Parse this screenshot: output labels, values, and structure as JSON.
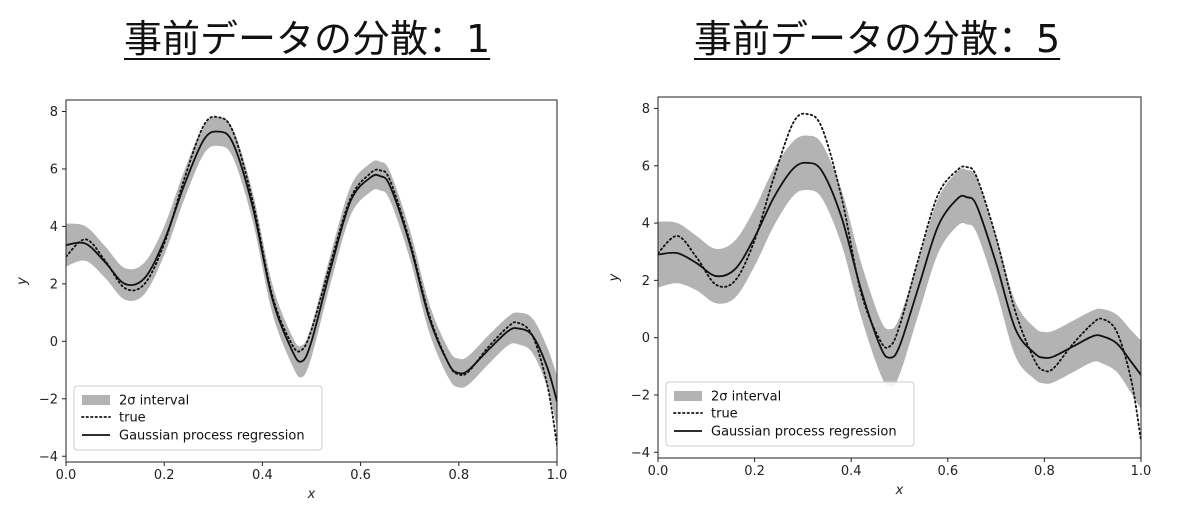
{
  "chart_data": [
    {
      "type": "line",
      "title": "事前データの分散：1",
      "xlabel": "x",
      "ylabel": "y",
      "xlim": [
        0.0,
        1.0
      ],
      "ylim": [
        -4.2,
        8.4
      ],
      "xticks": [
        "0.0",
        "0.2",
        "0.4",
        "0.6",
        "0.8",
        "1.0"
      ],
      "yticks": [
        "−4",
        "−2",
        "0",
        "2",
        "4",
        "6",
        "8"
      ],
      "legend_position": "lower-left",
      "legend": [
        "2σ interval",
        "true",
        "Gaussian process regression"
      ],
      "x": [
        0.0,
        0.04,
        0.08,
        0.12,
        0.16,
        0.2,
        0.24,
        0.28,
        0.31,
        0.34,
        0.38,
        0.42,
        0.46,
        0.48,
        0.5,
        0.54,
        0.58,
        0.62,
        0.64,
        0.66,
        0.7,
        0.74,
        0.78,
        0.8,
        0.82,
        0.86,
        0.9,
        0.92,
        0.95,
        0.98,
        1.0
      ],
      "series": [
        {
          "name": "true",
          "style": "dotted",
          "values": [
            2.95,
            3.55,
            2.8,
            1.85,
            2.0,
            3.4,
            5.6,
            7.5,
            7.8,
            7.3,
            4.9,
            1.6,
            -0.1,
            -0.3,
            0.4,
            2.8,
            5.0,
            5.85,
            5.95,
            5.6,
            3.5,
            0.9,
            -0.8,
            -1.15,
            -1.05,
            -0.2,
            0.5,
            0.65,
            0.2,
            -1.5,
            -3.6
          ]
        },
        {
          "name": "Gaussian process regression",
          "style": "solid",
          "values": [
            3.35,
            3.4,
            2.75,
            2.0,
            2.2,
            3.5,
            5.4,
            7.0,
            7.3,
            6.9,
            4.7,
            1.5,
            -0.3,
            -0.7,
            0.0,
            2.6,
            4.9,
            5.7,
            5.75,
            5.4,
            3.4,
            0.8,
            -0.8,
            -1.1,
            -1.0,
            -0.3,
            0.35,
            0.45,
            0.2,
            -0.9,
            -2.1
          ]
        },
        {
          "name": "2σ interval",
          "style": "band",
          "half_width": [
            0.75,
            0.6,
            0.55,
            0.55,
            0.55,
            0.5,
            0.5,
            0.5,
            0.5,
            0.5,
            0.5,
            0.5,
            0.5,
            0.55,
            0.55,
            0.5,
            0.5,
            0.5,
            0.5,
            0.5,
            0.5,
            0.5,
            0.5,
            0.5,
            0.5,
            0.5,
            0.5,
            0.55,
            0.6,
            0.7,
            0.9
          ]
        }
      ]
    },
    {
      "type": "line",
      "title": "事前データの分散：5",
      "xlabel": "x",
      "ylabel": "y",
      "xlim": [
        0.0,
        1.0
      ],
      "ylim": [
        -4.2,
        8.4
      ],
      "xticks": [
        "0.0",
        "0.2",
        "0.4",
        "0.6",
        "0.8",
        "1.0"
      ],
      "yticks": [
        "−4",
        "−2",
        "0",
        "2",
        "4",
        "6",
        "8"
      ],
      "legend_position": "lower-left",
      "legend": [
        "2σ interval",
        "true",
        "Gaussian process regression"
      ],
      "x": [
        0.0,
        0.04,
        0.08,
        0.12,
        0.16,
        0.2,
        0.24,
        0.28,
        0.31,
        0.34,
        0.38,
        0.42,
        0.46,
        0.48,
        0.5,
        0.54,
        0.58,
        0.62,
        0.64,
        0.66,
        0.7,
        0.74,
        0.78,
        0.8,
        0.82,
        0.86,
        0.9,
        0.92,
        0.95,
        0.98,
        1.0
      ],
      "series": [
        {
          "name": "true",
          "style": "dotted",
          "values": [
            2.95,
            3.55,
            2.8,
            1.85,
            2.0,
            3.4,
            5.6,
            7.5,
            7.8,
            7.3,
            4.9,
            1.6,
            -0.1,
            -0.3,
            0.4,
            2.8,
            5.0,
            5.85,
            5.95,
            5.6,
            3.5,
            0.9,
            -0.8,
            -1.15,
            -1.05,
            -0.2,
            0.5,
            0.65,
            0.2,
            -1.5,
            -3.6
          ]
        },
        {
          "name": "Gaussian process regression",
          "style": "solid",
          "values": [
            2.9,
            2.95,
            2.6,
            2.15,
            2.4,
            3.5,
            4.9,
            5.9,
            6.1,
            5.8,
            4.2,
            1.7,
            -0.3,
            -0.7,
            -0.3,
            1.8,
            3.9,
            4.85,
            4.9,
            4.6,
            2.6,
            0.3,
            -0.55,
            -0.7,
            -0.65,
            -0.3,
            0.05,
            0.05,
            -0.2,
            -0.85,
            -1.3
          ]
        },
        {
          "name": "2σ interval",
          "style": "band",
          "half_width": [
            1.15,
            1.05,
            0.95,
            0.95,
            1.0,
            1.0,
            1.0,
            0.95,
            0.95,
            0.95,
            0.95,
            0.95,
            0.95,
            1.0,
            1.0,
            0.95,
            0.95,
            0.95,
            0.95,
            0.95,
            0.95,
            0.95,
            0.9,
            0.9,
            0.9,
            0.9,
            0.9,
            0.95,
            1.0,
            1.1,
            1.2
          ]
        }
      ]
    }
  ]
}
